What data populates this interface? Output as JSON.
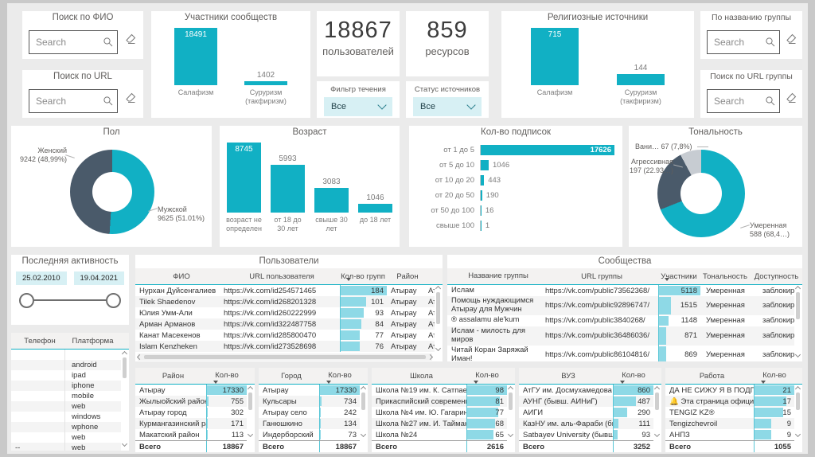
{
  "colors": {
    "teal": "#11b0c4",
    "teal_light": "#8ed9e6",
    "slate": "#4a5a6a",
    "gray_slice": "#c7ccd2",
    "fill_cyan": "#d7f0f4"
  },
  "search_cards": {
    "fio": {
      "title": "Поиск по ФИО",
      "placeholder": "Search"
    },
    "url": {
      "title": "Поиск по URL",
      "placeholder": "Search"
    },
    "group_name": {
      "title": "По названию группы",
      "placeholder": "Search"
    },
    "group_url": {
      "title": "Поиск по URL группы",
      "placeholder": "Search"
    }
  },
  "kpis": {
    "users": {
      "value": "18867",
      "label": "пользователей"
    },
    "resources": {
      "value": "859",
      "label": "ресурсов"
    }
  },
  "filters": {
    "flow": {
      "label": "Фильтр течения",
      "value": "Все"
    },
    "status": {
      "label": "Статус источников",
      "value": "Все"
    }
  },
  "chart_data": [
    {
      "type": "bar",
      "title": "Участники сообществ",
      "categories": [
        "Салафизм",
        "Суруризм (такфиризм)"
      ],
      "values": [
        18491,
        1402
      ]
    },
    {
      "type": "bar",
      "title": "Религиозные источники",
      "categories": [
        "Салафизм",
        "Суруризм (такфиризм)"
      ],
      "values": [
        715,
        144
      ]
    },
    {
      "type": "bar",
      "title": "Возраст",
      "categories": [
        "возраст не определен",
        "от 18 до 30 лет",
        "свыше 30 лет",
        "до 18 лет"
      ],
      "values": [
        8745,
        5993,
        3083,
        1046
      ]
    },
    {
      "type": "bar",
      "orientation": "horizontal",
      "title": "Кол-во подписок",
      "categories": [
        "от 1 до 5",
        "от 5 до 10",
        "от 10 до 20",
        "от 20 до 50",
        "от 50 до 100",
        "свыше 100"
      ],
      "values": [
        17626,
        1046,
        443,
        190,
        16,
        1
      ]
    },
    {
      "type": "pie",
      "title": "Пол",
      "slices": [
        {
          "label": "Мужской",
          "value": 9625,
          "display": "9625 (51.01%)",
          "color": "#11b0c4"
        },
        {
          "label": "Женский",
          "value": 9242,
          "display": "9242 (48,99%)",
          "color": "#4a5a6a"
        }
      ]
    },
    {
      "type": "pie",
      "title": "Тональность",
      "slices": [
        {
          "label": "Умеренная",
          "value": 588,
          "display": "588 (68,4…)",
          "color": "#11b0c4"
        },
        {
          "label": "Агрессивная",
          "value": 197,
          "display": "197 (22.93…)",
          "color": "#4a5a6a"
        },
        {
          "label": "Вани…",
          "value": 67,
          "display": "67 (7,8%)",
          "color": "#c7ccd2"
        }
      ]
    }
  ],
  "activity": {
    "title": "Последняя активность",
    "start": "25.02.2010",
    "end": "19.04.2021"
  },
  "platform_table": {
    "headers": [
      "Телефон",
      "Платформа"
    ],
    "rows": [
      {
        "phone": "",
        "platform": ""
      },
      {
        "phone": "",
        "platform": "android"
      },
      {
        "phone": "",
        "platform": "ipad"
      },
      {
        "phone": "",
        "platform": "iphone"
      },
      {
        "phone": "",
        "platform": "mobile"
      },
      {
        "phone": "",
        "platform": "web"
      },
      {
        "phone": "",
        "platform": "windows"
      },
      {
        "phone": "",
        "platform": "wphone"
      },
      {
        "phone": "",
        "platform": "web"
      },
      {
        "phone": "--",
        "platform": "web"
      }
    ]
  },
  "users_table": {
    "title": "Пользователи",
    "headers": [
      "ФИО",
      "URL пользователя",
      "Кол-во групп",
      "Район",
      ""
    ],
    "rows": [
      {
        "fio": "Нурхан Дуйсенгалиев",
        "url": "https://vk.com/id254571465",
        "groups": 184,
        "district": "Атырау",
        "extra": "Аты"
      },
      {
        "fio": "Tilek Shaedenov",
        "url": "https://vk.com/id268201328",
        "groups": 101,
        "district": "Атырау",
        "extra": "Аты"
      },
      {
        "fio": "Юлия Умм-Али",
        "url": "https://vk.com/id260222999",
        "groups": 93,
        "district": "Атырау",
        "extra": "Аты"
      },
      {
        "fio": "Арман Арманов",
        "url": "https://vk.com/id322487758",
        "groups": 84,
        "district": "Атырау",
        "extra": "Аты"
      },
      {
        "fio": "Канат Масекенов",
        "url": "https://vk.com/id285800470",
        "groups": 77,
        "district": "Атырау",
        "extra": "Аты"
      },
      {
        "fio": "Islam Kenzheken",
        "url": "https://vk.com/id273528698",
        "groups": 76,
        "district": "Атырау",
        "extra": "Аты"
      }
    ]
  },
  "groups_table": {
    "title": "Сообщества",
    "headers": [
      "Название группы",
      "URL группы",
      "Участники",
      "Тональность",
      "Доступность"
    ],
    "rows": [
      {
        "name": "Ислам",
        "url": "https://vk.com/public73562368/",
        "members": 5118,
        "tone": "Умеренная",
        "access": "заблокировано"
      },
      {
        "name": "Помощь нуждающимся Атырау для Мужчин",
        "url": "https://vk.com/public92896747/",
        "members": 1515,
        "tone": "Умеренная",
        "access": "заблокировано"
      },
      {
        "name": "® assalamu ale'kum",
        "url": "https://vk.com/public3840268/",
        "members": 1148,
        "tone": "Умеренная",
        "access": "заблокировано"
      },
      {
        "name": "Ислам - милость для миров",
        "url": "https://vk.com/public36486036/",
        "members": 871,
        "tone": "Умеренная",
        "access": "заблокировано"
      },
      {
        "name": "Читай Коран Заряжай Иман!",
        "url": "https://vk.com/public86104816/",
        "members": 869,
        "tone": "Умеренная",
        "access": "заблокировано"
      }
    ]
  },
  "summary_tables": [
    {
      "title": "Район",
      "value_header": "Кол-во",
      "rows": [
        {
          "label": "Атырау",
          "value": 17330
        },
        {
          "label": "Жылыойский район",
          "value": 755
        },
        {
          "label": "Атырау город",
          "value": 302
        },
        {
          "label": "Курмангазинский ра…",
          "value": 171
        },
        {
          "label": "Макатский район",
          "value": 113
        }
      ],
      "total_label": "Всего",
      "total": "18867"
    },
    {
      "title": "Город",
      "value_header": "Кол-во",
      "rows": [
        {
          "label": "Атырау",
          "value": 17330
        },
        {
          "label": "Кульсары",
          "value": 734
        },
        {
          "label": "Атырау село",
          "value": 242
        },
        {
          "label": "Ганюшкино",
          "value": 134
        },
        {
          "label": "Индерборский",
          "value": 73
        }
      ],
      "total_label": "Всего",
      "total": "18867"
    },
    {
      "title": "Школа",
      "value_header": "Кол-во",
      "rows": [
        {
          "label": "Школа №19 им. К. Сатпаева",
          "value": 98
        },
        {
          "label": "Прикаспийский современны…",
          "value": 81
        },
        {
          "label": "Школа №4 им. Ю. Гагарина",
          "value": 77
        },
        {
          "label": "Школа №27 им. И. Тайманова",
          "value": 68
        },
        {
          "label": "Школа №24",
          "value": 65
        }
      ],
      "total_label": "Всего",
      "total": "2616"
    },
    {
      "title": "ВУЗ",
      "value_header": "Кол-во",
      "rows": [
        {
          "label": "АтГУ им. Досмухамедова (…",
          "value": 860
        },
        {
          "label": "АУНГ (бывш. АИНиГ)",
          "value": 487
        },
        {
          "label": "АИГИ",
          "value": 290
        },
        {
          "label": "КазНУ им. аль-Фараби (бы…",
          "value": 111
        },
        {
          "label": "Satbayev University (бывш. …",
          "value": 93
        }
      ],
      "total_label": "Всего",
      "total": "3252"
    },
    {
      "title": "Работа",
      "value_header": "Кол-во",
      "rows": [
        {
          "label": "ДА НЕ СИЖУ Я В ПОДПИС…",
          "value": 21
        },
        {
          "label": "🔔 Эта страница официал…",
          "value": 17
        },
        {
          "label": "TENGIZ KZ®",
          "value": 15
        },
        {
          "label": "Tengizchevroil",
          "value": 9
        },
        {
          "label": "АНПЗ",
          "value": 9
        }
      ],
      "total_label": "Всего",
      "total": "1055"
    }
  ]
}
